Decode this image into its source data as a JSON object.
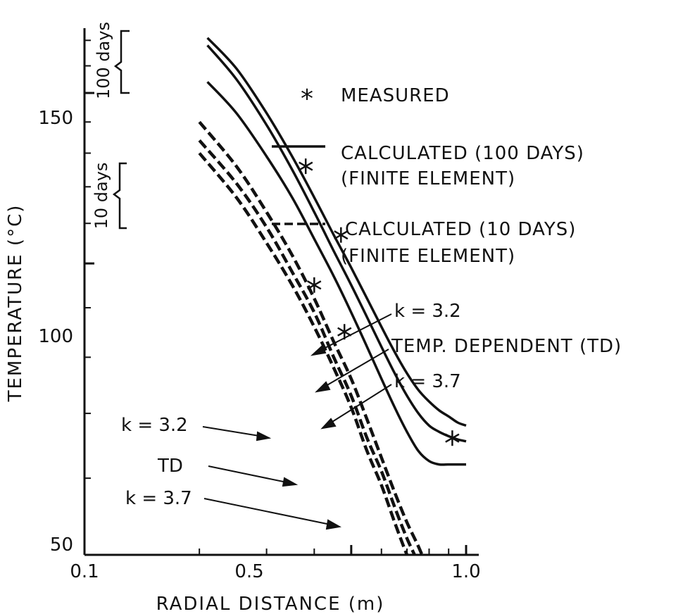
{
  "chart_data": {
    "type": "line",
    "xlabel": "RADIAL DISTANCE (m)",
    "ylabel": "TEMPERATURE (°C)",
    "xlim": [
      0.1,
      1.0
    ],
    "ylim": [
      50,
      175
    ],
    "x_ticks": [
      0.1,
      0.5,
      1.0
    ],
    "x_tick_labels": [
      "0.1",
      "0.5",
      "1.0"
    ],
    "y_ticks": [
      50,
      100,
      150
    ],
    "y_tick_labels": [
      "50",
      "100",
      "150"
    ],
    "minor_x_ticks": [
      0.2,
      0.3,
      0.4,
      0.6,
      0.7,
      0.8,
      0.9
    ],
    "minor_y_ticks": [
      60,
      70,
      80,
      90,
      110,
      120,
      130,
      140,
      160,
      170
    ],
    "grid": false,
    "legend_position": "top-right",
    "legend": {
      "measured": "MEASURED",
      "calc100_line1": "CALCULATED  (100 DAYS)",
      "calc100_line2": "(FINITE ELEMENT)",
      "calc10_line1": "CALCULATED (10 DAYS)",
      "calc10_line2": "(FINITE ELEMENT)"
    },
    "brackets": {
      "days100": "100 days",
      "days10": "10 days"
    },
    "series": [
      {
        "group": "100 days",
        "style": "solid",
        "label": "k = 3.2",
        "x": [
          0.21,
          0.25,
          0.3,
          0.35,
          0.4,
          0.45,
          0.5,
          0.55,
          0.6,
          0.65,
          0.7,
          0.75,
          0.8,
          0.85,
          0.9,
          0.95,
          1.0
        ],
        "y": [
          171,
          159,
          143,
          129,
          117,
          107,
          99,
          92,
          86,
          81,
          77,
          74,
          72,
          70.5,
          69.5,
          68.5,
          68
        ]
      },
      {
        "group": "100 days",
        "style": "solid",
        "label": "TEMP. DEPENDENT (TD)",
        "x": [
          0.21,
          0.25,
          0.3,
          0.35,
          0.4,
          0.45,
          0.5,
          0.55,
          0.6,
          0.65,
          0.7,
          0.75,
          0.8,
          0.85,
          0.9,
          0.95,
          1.0
        ],
        "y": [
          168,
          155,
          139,
          125,
          113,
          103,
          95,
          88,
          82,
          77,
          73,
          70,
          68,
          67,
          66.3,
          65.8,
          65.5
        ]
      },
      {
        "group": "100 days",
        "style": "solid",
        "label": "k = 3.7",
        "x": [
          0.21,
          0.25,
          0.3,
          0.35,
          0.4,
          0.45,
          0.5,
          0.55,
          0.6,
          0.65,
          0.7,
          0.75,
          0.8,
          0.85,
          0.9,
          0.95,
          1.0
        ],
        "y": [
          154,
          143,
          129,
          117,
          106,
          97,
          89,
          82,
          76,
          71,
          67,
          64,
          62.5,
          62,
          62,
          62,
          62
        ]
      },
      {
        "group": "10 days",
        "style": "dashed",
        "label": "k = 3.2",
        "x": [
          0.2,
          0.25,
          0.3,
          0.35,
          0.4,
          0.45,
          0.5,
          0.55,
          0.6,
          0.65,
          0.7,
          0.75,
          0.8
        ],
        "y": [
          140,
          126,
          113,
          102,
          92,
          83,
          76,
          69,
          63,
          58,
          54,
          51,
          48
        ]
      },
      {
        "group": "10 days",
        "style": "dashed",
        "label": "TD",
        "x": [
          0.2,
          0.25,
          0.3,
          0.35,
          0.4,
          0.45,
          0.5,
          0.55,
          0.6,
          0.65,
          0.7,
          0.75,
          0.8
        ],
        "y": [
          134,
          121,
          109,
          98,
          89,
          80,
          73,
          66,
          61,
          56,
          52,
          49,
          46
        ]
      },
      {
        "group": "10 days",
        "style": "dashed",
        "label": "k = 3.7",
        "x": [
          0.2,
          0.25,
          0.3,
          0.35,
          0.4,
          0.45,
          0.5,
          0.55,
          0.6,
          0.65,
          0.7,
          0.75,
          0.8
        ],
        "y": [
          130,
          117,
          105,
          95,
          86,
          78,
          71,
          64,
          59,
          54,
          50,
          47,
          44
        ]
      }
    ],
    "measured": {
      "x": [
        0.38,
        0.47,
        0.4,
        0.48,
        0.92
      ],
      "y": [
        126,
        107,
        95,
        85,
        66
      ]
    }
  }
}
